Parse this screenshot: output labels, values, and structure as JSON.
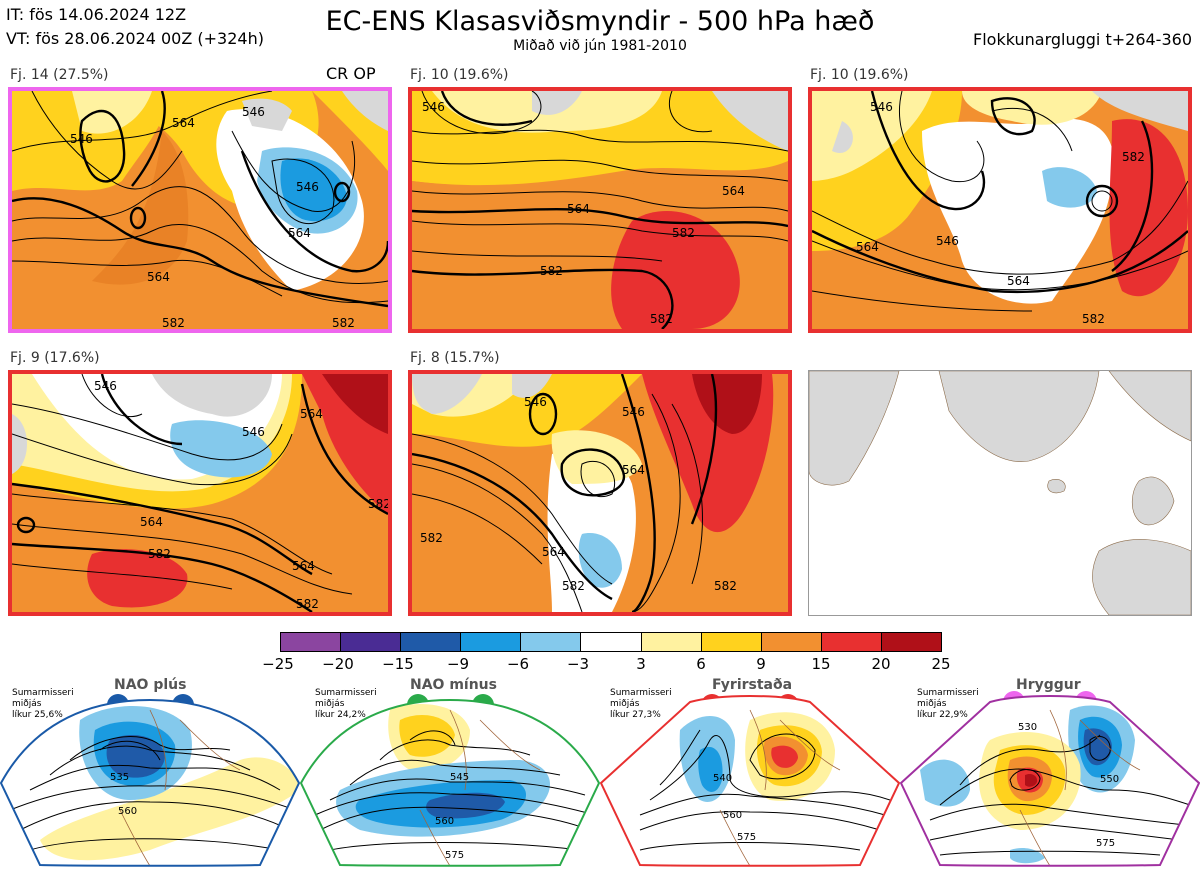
{
  "header": {
    "it": "IT: fös 14.06.2024 12Z",
    "vt": "VT: fös 28.06.2024 00Z  (+324h)",
    "title": "EC-ENS Klasasviðsmyndir - 500 hPa hæð",
    "subtitle": "Miðað við jún 1981-2010",
    "window": "Flokkunargluggi t+264-360"
  },
  "clusters": [
    {
      "label": "Fj. 14 (27.5%)",
      "extra": "CR OP",
      "border_color": "#ee66ee",
      "contour_labels": [
        "546",
        "546",
        "564",
        "546",
        "564",
        "564",
        "582",
        "582"
      ]
    },
    {
      "label": "Fj. 10 (19.6%)",
      "border_color": "#e83030",
      "contour_labels": [
        "546",
        "564",
        "564",
        "582",
        "582",
        "582"
      ]
    },
    {
      "label": "Fj. 10 (19.6%)",
      "border_color": "#e83030",
      "contour_labels": [
        "546",
        "546",
        "564",
        "564",
        "582",
        "582"
      ]
    },
    {
      "label": "Fj. 9 (17.6%)",
      "border_color": "#e83030",
      "contour_labels": [
        "546",
        "546",
        "564",
        "564",
        "564",
        "582",
        "582",
        "582"
      ]
    },
    {
      "label": "Fj. 8 (15.7%)",
      "border_color": "#e83030",
      "contour_labels": [
        "546",
        "546",
        "564",
        "564",
        "582",
        "582",
        "582"
      ]
    }
  ],
  "colorbar": {
    "ticks": [
      "−25",
      "−20",
      "−15",
      "−9",
      "−6",
      "−3",
      "3",
      "6",
      "9",
      "15",
      "20",
      "25"
    ],
    "colors": [
      "#8b45a0",
      "#4a2c94",
      "#1f5aa8",
      "#1b9be0",
      "#84c9ec",
      "#ffffff",
      "#fff2a0",
      "#ffd21e",
      "#f29030",
      "#e83030",
      "#b01018"
    ]
  },
  "regimes": [
    {
      "name": "NAO plús",
      "note": "Sumarmisseri\nmiðjás\nlíkur 25,6%",
      "color": "#1a5aa8",
      "contour_labels": [
        "535",
        "560"
      ]
    },
    {
      "name": "NAO mínus",
      "note": "Sumarmisseri\nmiðjás\nlíkur 24,2%",
      "color": "#2aaa4a",
      "contour_labels": [
        "545",
        "560",
        "575"
      ]
    },
    {
      "name": "Fyrirstaða",
      "note": "Sumarmisseri\nmiðjás\nlíkur 27,3%",
      "color": "#e83030",
      "contour_labels": [
        "540",
        "560",
        "575"
      ]
    },
    {
      "name": "Hryggur",
      "note": "Sumarmisseri\nmiðjás\nlíkur 22,9%",
      "color": "#ee66ee",
      "contour_labels": [
        "530",
        "550",
        "575"
      ]
    }
  ]
}
